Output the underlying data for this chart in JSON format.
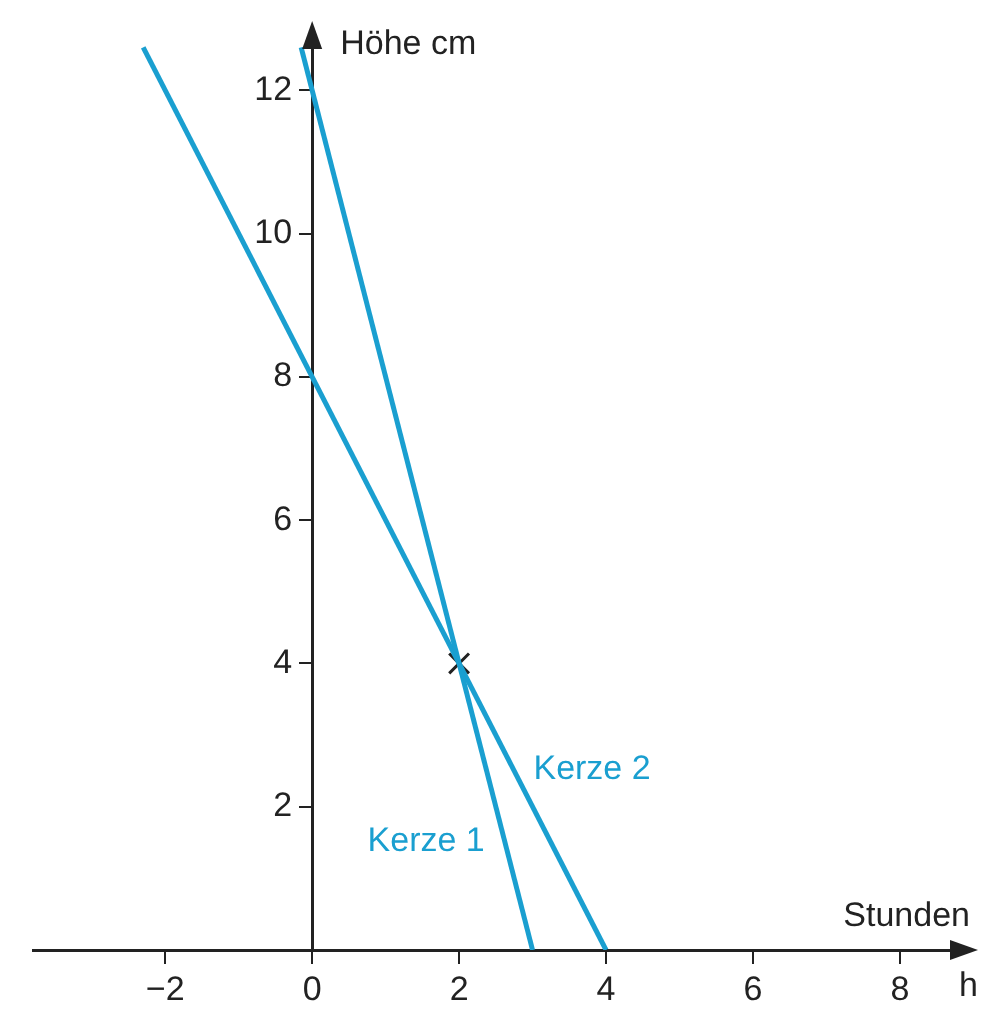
{
  "chart_data": {
    "type": "line",
    "xlabel": "Stunden",
    "ylabel": "Höhe cm",
    "annotations": [
      "h"
    ],
    "xlim": [
      -3.8,
      8.9
    ],
    "ylim": [
      0,
      12.8
    ],
    "xticks": [
      -2,
      0,
      2,
      4,
      6,
      8
    ],
    "yticks": [
      2,
      4,
      6,
      8,
      10,
      12
    ],
    "grid": false,
    "legend": false,
    "marker": "none",
    "line_style": "solid",
    "series": [
      {
        "name": "Kerze 1",
        "color": "#1a9fd0",
        "x": [
          -0.15,
          3
        ],
        "values": [
          12.6,
          0
        ]
      },
      {
        "name": "Kerze 2",
        "color": "#1a9fd0",
        "x": [
          -2.3,
          4
        ],
        "values": [
          12.6,
          0
        ]
      },
      {
        "type": "scatter",
        "color": "#222222",
        "marker": "cross",
        "x": [
          2
        ],
        "values": [
          4
        ]
      }
    ]
  }
}
